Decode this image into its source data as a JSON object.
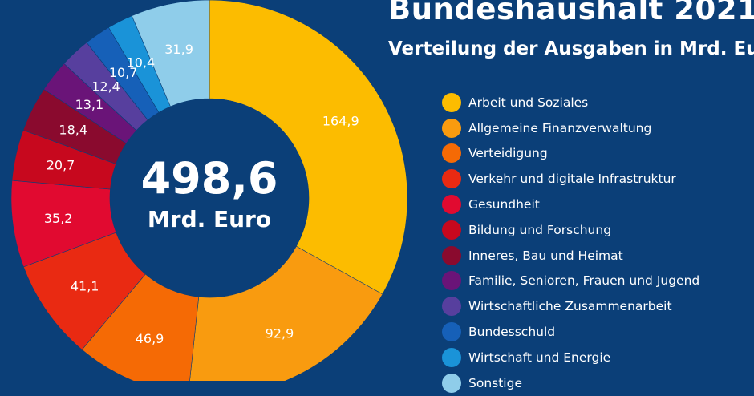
{
  "header": {
    "title": "Bundeshaushalt 2021",
    "subtitle": "Verteilung der Ausgaben in Mrd. Euro"
  },
  "center": {
    "value": "498,6",
    "unit": "Mrd. Euro"
  },
  "chart_data": {
    "type": "pie",
    "variant": "donut",
    "title": "Bundeshaushalt 2021",
    "subtitle": "Verteilung der Ausgaben in Mrd. Euro",
    "total": 498.6,
    "total_label": "498,6",
    "unit": "Mrd. Euro",
    "start_angle_deg": 0,
    "direction": "clockwise",
    "slices": [
      {
        "name": "Arbeit und Soziales",
        "value": 164.9,
        "label": "164,9",
        "color": "#fcbc00"
      },
      {
        "name": "Allgemeine Finanzverwaltung",
        "value": 92.9,
        "label": "92,9",
        "color": "#f99b0f"
      },
      {
        "name": "Verteidigung",
        "value": 46.9,
        "label": "46,9",
        "color": "#f56a05"
      },
      {
        "name": "Verkehr und digitale Infrastruktur",
        "value": 41.1,
        "label": "41,1",
        "color": "#e92a12"
      },
      {
        "name": "Gesundheit",
        "value": 35.2,
        "label": "35,2",
        "color": "#e10a30"
      },
      {
        "name": "Bildung und Forschung",
        "value": 20.7,
        "label": "20,7",
        "color": "#c7081e"
      },
      {
        "name": "Inneres, Bau und Heimat",
        "value": 18.4,
        "label": "18,4",
        "color": "#8a0a2e"
      },
      {
        "name": "Familie, Senioren, Frauen und Jugend",
        "value": 13.1,
        "label": "13,1",
        "color": "#6a1478"
      },
      {
        "name": "Wirtschaftliche Zusammenarbeit",
        "value": 12.4,
        "label": "12,4",
        "color": "#573f9e"
      },
      {
        "name": "Bundesschuld",
        "value": 10.7,
        "label": "10,7",
        "color": "#1660b8"
      },
      {
        "name": "Wirtschaft und Energie",
        "value": 10.4,
        "label": "10,4",
        "color": "#1a93d8"
      },
      {
        "name": "Sonstige",
        "value": 31.9,
        "label": "31,9",
        "color": "#8fcdea"
      }
    ]
  }
}
